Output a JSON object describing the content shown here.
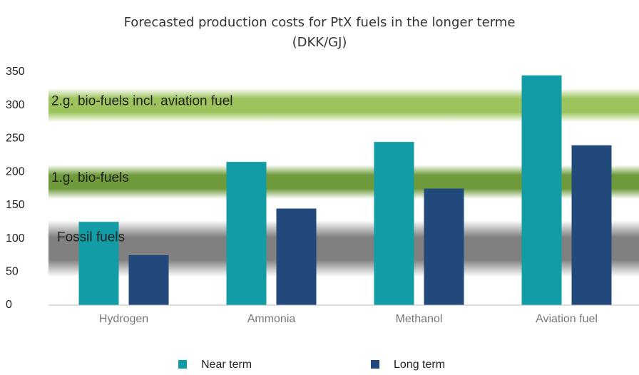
{
  "chart_data": {
    "type": "bar",
    "title": [
      "Forecasted production costs for PtX fuels in the longer terme",
      "(DKK/GJ)"
    ],
    "categories": [
      "Hydrogen",
      "Ammonia",
      "Methanol",
      "Aviation fuel"
    ],
    "series": [
      {
        "name": "Near term",
        "color": "#129ca6",
        "values": [
          125,
          215,
          245,
          345
        ]
      },
      {
        "name": "Long term",
        "color": "#22497b",
        "values": [
          75,
          145,
          175,
          240
        ]
      }
    ],
    "ylim": [
      0,
      350
    ],
    "yticks": [
      0,
      50,
      100,
      150,
      200,
      250,
      300,
      350
    ],
    "grid": false,
    "legend": "bottom",
    "bands": [
      {
        "label": "Fossil fuels",
        "range": [
          60,
          110
        ],
        "color": "#808080"
      },
      {
        "label": "1.g. bio-fuels",
        "range": [
          170,
          200
        ],
        "color": "#6e9a3b"
      },
      {
        "label": "2.g. bio-fuels incl. aviation fuel",
        "range": [
          285,
          315
        ],
        "color": "#9cc35c"
      }
    ]
  }
}
